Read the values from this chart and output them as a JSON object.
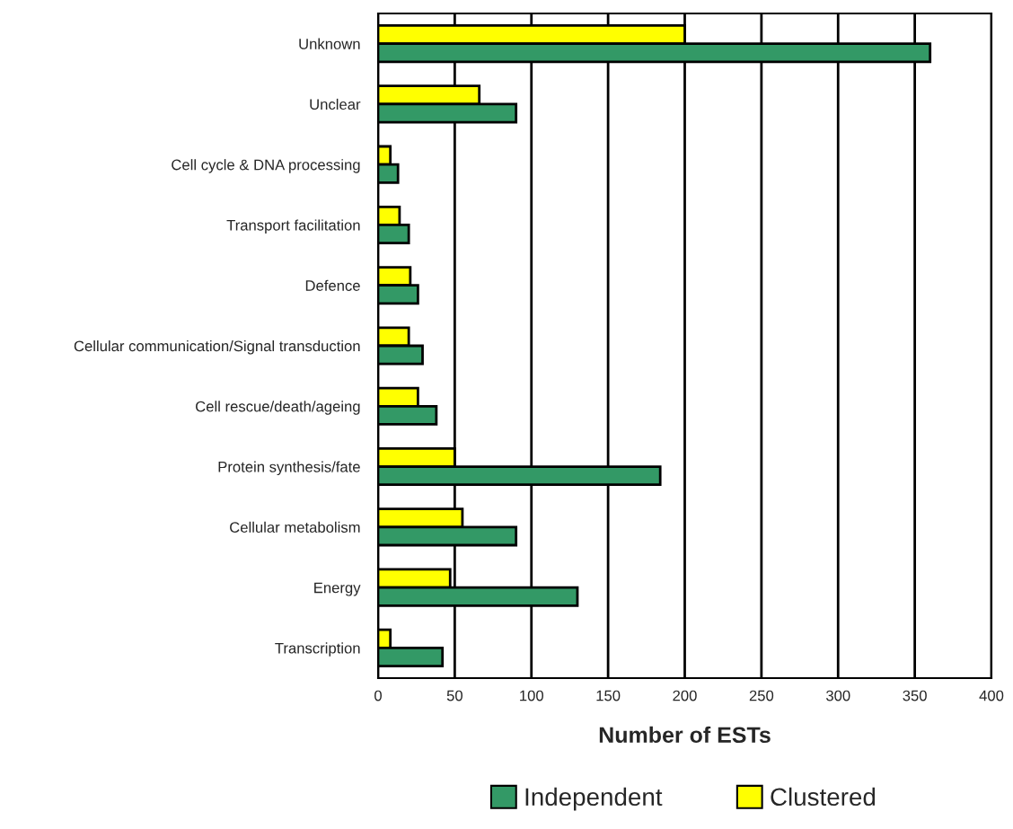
{
  "chart_data": {
    "type": "bar",
    "orientation": "horizontal",
    "xlabel": "Number of ESTs",
    "categories": [
      "Unknown",
      "Unclear",
      "Cell cycle & DNA processing",
      "Transport facilitation",
      "Defence",
      "Cellular communication/Signal transduction",
      "Cell rescue/death/ageing",
      "Protein synthesis/fate",
      "Cellular metabolism",
      "Energy",
      "Transcription"
    ],
    "series": [
      {
        "name": "Clustered",
        "color": "#ffff00",
        "values": [
          200,
          66,
          8,
          14,
          21,
          20,
          26,
          50,
          55,
          47,
          8
        ]
      },
      {
        "name": "Independent",
        "color": "#339966",
        "values": [
          360,
          90,
          13,
          20,
          26,
          29,
          38,
          184,
          90,
          130,
          42
        ]
      }
    ],
    "xlim": [
      0,
      400
    ],
    "xticks": [
      0,
      50,
      100,
      150,
      200,
      250,
      300,
      350,
      400
    ],
    "grid": "x",
    "legend": "bottom"
  }
}
